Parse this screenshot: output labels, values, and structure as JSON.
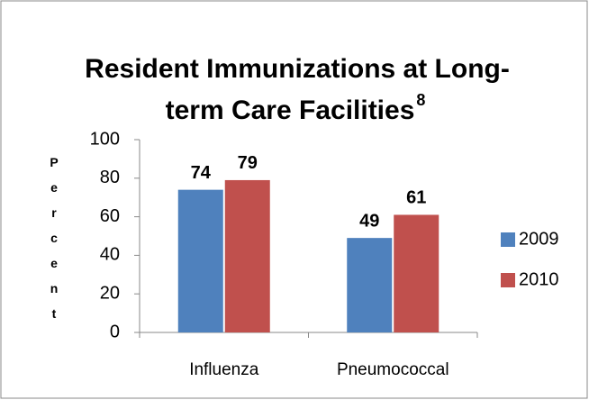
{
  "chart_data": {
    "type": "bar",
    "title": [
      "Resident Immunizations at Long-",
      "term Care Facilities"
    ],
    "title_superscript": "8",
    "ylabel": "Percent",
    "categories": [
      "Influenza",
      "Pneumococcal"
    ],
    "series": [
      {
        "name": "2009",
        "color": "#4f81bd",
        "values": [
          74,
          49
        ]
      },
      {
        "name": "2010",
        "color": "#c0504d",
        "values": [
          79,
          61
        ]
      }
    ],
    "ylim": [
      0,
      100
    ],
    "yticks": [
      0,
      20,
      40,
      60,
      80,
      100
    ],
    "grid": false,
    "legend": "right"
  }
}
